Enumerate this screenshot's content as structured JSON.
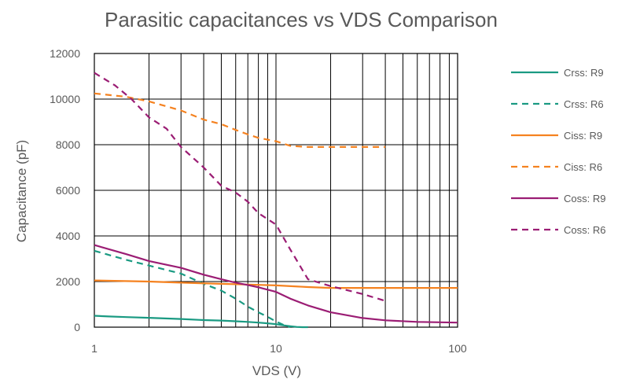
{
  "chart_data": {
    "type": "line",
    "title": "Parasitic capacitances vs VDS Comparison",
    "xlabel": "VDS (V)",
    "ylabel": "Capacitance (pF)",
    "xscale": "log",
    "xlim": [
      1,
      100
    ],
    "ylim": [
      0,
      12000
    ],
    "x_ticks": [
      "1",
      "10",
      "100"
    ],
    "y_ticks": [
      "0",
      "2000",
      "4000",
      "6000",
      "8000",
      "10000",
      "12000"
    ],
    "grid": true,
    "legend_position": "right",
    "series": [
      {
        "name": "Crss: R9",
        "color": "#1a9a82",
        "dash": "solid",
        "points": [
          [
            1,
            500
          ],
          [
            1.2,
            470
          ],
          [
            1.5,
            440
          ],
          [
            2,
            410
          ],
          [
            3,
            360
          ],
          [
            4,
            310
          ],
          [
            5,
            290
          ],
          [
            6,
            260
          ],
          [
            7,
            230
          ],
          [
            8,
            200
          ],
          [
            9,
            170
          ],
          [
            10,
            130
          ],
          [
            11,
            80
          ],
          [
            12,
            40
          ],
          [
            13,
            10
          ],
          [
            14,
            0
          ],
          [
            15,
            0
          ]
        ]
      },
      {
        "name": "Crss: R6",
        "color": "#1a9a82",
        "dash": "dashed",
        "points": [
          [
            1,
            3350
          ],
          [
            1.5,
            2950
          ],
          [
            2,
            2700
          ],
          [
            3,
            2350
          ],
          [
            4,
            1900
          ],
          [
            5,
            1600
          ],
          [
            6,
            1250
          ],
          [
            7,
            900
          ],
          [
            8,
            650
          ],
          [
            9,
            450
          ],
          [
            10,
            250
          ],
          [
            11,
            100
          ],
          [
            12,
            0
          ]
        ]
      },
      {
        "name": "Ciss: R9",
        "color": "#f58220",
        "dash": "solid",
        "points": [
          [
            1,
            2050
          ],
          [
            2,
            2000
          ],
          [
            3,
            1950
          ],
          [
            5,
            1900
          ],
          [
            7,
            1870
          ],
          [
            10,
            1830
          ],
          [
            15,
            1760
          ],
          [
            20,
            1720
          ],
          [
            30,
            1720
          ],
          [
            50,
            1720
          ],
          [
            100,
            1720
          ]
        ]
      },
      {
        "name": "Ciss: R6",
        "color": "#f58220",
        "dash": "dashed",
        "points": [
          [
            1,
            10250
          ],
          [
            1.5,
            10100
          ],
          [
            2,
            9900
          ],
          [
            3,
            9500
          ],
          [
            4,
            9100
          ],
          [
            5,
            8900
          ],
          [
            6,
            8650
          ],
          [
            7,
            8450
          ],
          [
            8,
            8300
          ],
          [
            10,
            8150
          ],
          [
            12,
            7950
          ],
          [
            15,
            7900
          ],
          [
            20,
            7900
          ],
          [
            30,
            7900
          ],
          [
            40,
            7900
          ]
        ]
      },
      {
        "name": "Coss: R9",
        "color": "#9b1d74",
        "dash": "solid",
        "points": [
          [
            1,
            3600
          ],
          [
            1.5,
            3200
          ],
          [
            2,
            2900
          ],
          [
            3,
            2600
          ],
          [
            4,
            2300
          ],
          [
            5,
            2100
          ],
          [
            6,
            1950
          ],
          [
            7,
            1850
          ],
          [
            8,
            1750
          ],
          [
            10,
            1550
          ],
          [
            12,
            1250
          ],
          [
            15,
            950
          ],
          [
            20,
            650
          ],
          [
            30,
            400
          ],
          [
            40,
            300
          ],
          [
            60,
            230
          ],
          [
            100,
            200
          ]
        ]
      },
      {
        "name": "Coss: R6",
        "color": "#9b1d74",
        "dash": "dashed",
        "points": [
          [
            1,
            11150
          ],
          [
            1.3,
            10600
          ],
          [
            1.6,
            10000
          ],
          [
            2,
            9200
          ],
          [
            2.5,
            8700
          ],
          [
            3,
            7900
          ],
          [
            4,
            7000
          ],
          [
            5,
            6200
          ],
          [
            6,
            5900
          ],
          [
            7,
            5500
          ],
          [
            8,
            5000
          ],
          [
            10,
            4500
          ],
          [
            12,
            3400
          ],
          [
            15,
            2100
          ],
          [
            20,
            1800
          ],
          [
            30,
            1450
          ],
          [
            40,
            1150
          ]
        ]
      }
    ]
  }
}
